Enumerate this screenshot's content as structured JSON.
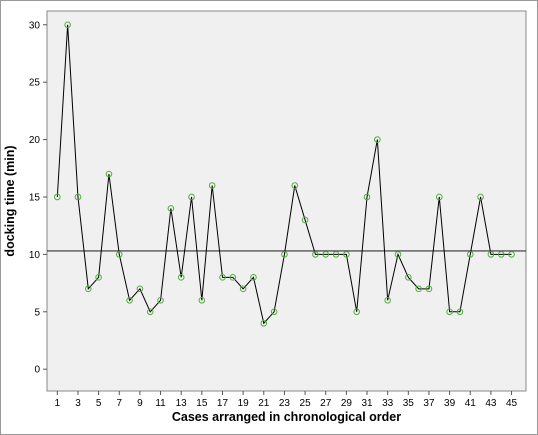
{
  "chart_data": {
    "type": "line",
    "xlabel": "Cases arranged in chronological order",
    "ylabel": "docking time (min)",
    "x": [
      1,
      2,
      3,
      4,
      5,
      6,
      7,
      8,
      9,
      10,
      11,
      12,
      13,
      14,
      15,
      16,
      17,
      18,
      19,
      20,
      21,
      22,
      23,
      24,
      25,
      26,
      27,
      28,
      29,
      30,
      31,
      32,
      33,
      34,
      35,
      36,
      37,
      38,
      39,
      40,
      41,
      42,
      43,
      44,
      45
    ],
    "values": [
      15,
      30,
      15,
      7,
      8,
      17,
      10,
      6,
      7,
      5,
      6,
      14,
      8,
      15,
      6,
      16,
      8,
      8,
      7,
      8,
      4,
      5,
      10,
      16,
      13,
      10,
      10,
      10,
      10,
      5,
      15,
      20,
      6,
      10,
      8,
      7,
      7,
      15,
      5,
      5,
      10,
      15,
      10,
      10,
      10
    ],
    "reference_line": 10.3,
    "x_ticks": [
      1,
      3,
      5,
      7,
      9,
      11,
      13,
      15,
      17,
      19,
      21,
      23,
      25,
      27,
      29,
      31,
      33,
      35,
      37,
      39,
      41,
      43,
      45
    ],
    "y_ticks": [
      0,
      5,
      10,
      15,
      20,
      25,
      30
    ],
    "xlim": [
      0,
      46.4
    ],
    "ylim": [
      -1.9,
      31.2
    ],
    "grid": false,
    "colors": {
      "line": "#000000",
      "marker": "#4fae3c",
      "reference": "#333333",
      "plot_background": "#f0f0f0",
      "frame": "#888888"
    }
  }
}
